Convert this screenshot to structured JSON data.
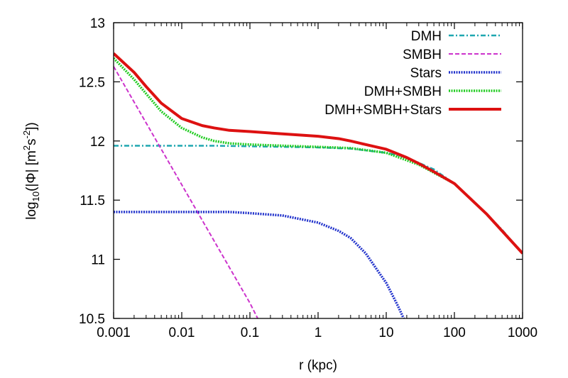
{
  "chart_data": {
    "type": "line",
    "xscale": "log",
    "xlim": [
      0.001,
      1000
    ],
    "ylim": [
      10.5,
      13
    ],
    "xlabel": "r (kpc)",
    "ylabel": {
      "prefix": "log",
      "sub": "10",
      "body": "(|Φ| [m",
      "sup1": "2",
      "mid": "s",
      "sup2": "-2",
      "end": "])"
    },
    "xticks": [
      0.001,
      0.01,
      0.1,
      1,
      10,
      100,
      1000
    ],
    "xtick_labels": [
      "0.001",
      "0.01",
      "0.1",
      "1",
      "10",
      "100",
      "1000"
    ],
    "yticks": [
      10.5,
      11,
      11.5,
      12,
      12.5,
      13
    ],
    "ytick_labels": [
      "10.5",
      "11",
      "11.5",
      "12",
      "12.5",
      "13"
    ],
    "grid": false,
    "legend_position": "top-right",
    "series": [
      {
        "name": "DMH",
        "color": "#1fa7b0",
        "style": "dash-dot",
        "x": [
          0.001,
          0.003,
          0.01,
          0.03,
          0.1,
          0.3,
          1,
          3,
          10,
          20,
          50,
          100,
          200,
          500,
          1000
        ],
        "y": [
          11.96,
          11.96,
          11.96,
          11.96,
          11.955,
          11.95,
          11.945,
          11.935,
          11.9,
          11.86,
          11.76,
          11.64,
          11.48,
          11.25,
          11.05
        ]
      },
      {
        "name": "SMBH",
        "color": "#cc33cc",
        "style": "dashed",
        "x": [
          0.001,
          0.01,
          0.1,
          0.13
        ],
        "y": [
          12.63,
          11.63,
          10.63,
          10.5
        ]
      },
      {
        "name": "Stars",
        "color": "#2233cc",
        "style": "dotted",
        "x": [
          0.001,
          0.01,
          0.05,
          0.1,
          0.3,
          1,
          2,
          3,
          5,
          8,
          10,
          15,
          18
        ],
        "y": [
          11.4,
          11.4,
          11.4,
          11.39,
          11.37,
          11.31,
          11.24,
          11.18,
          11.05,
          10.88,
          10.8,
          10.6,
          10.5
        ]
      },
      {
        "name": "DMH+SMBH",
        "color": "#22cc22",
        "style": "dotted",
        "x": [
          0.001,
          0.002,
          0.003,
          0.005,
          0.01,
          0.02,
          0.03,
          0.05,
          0.1,
          0.3,
          1,
          3,
          10,
          30,
          100,
          300,
          1000
        ],
        "y": [
          12.7,
          12.52,
          12.4,
          12.25,
          12.11,
          12.03,
          12.0,
          11.98,
          11.97,
          11.96,
          11.95,
          11.94,
          11.9,
          11.8,
          11.64,
          11.38,
          11.05
        ]
      },
      {
        "name": "DMH+SMBH+Stars",
        "color": "#dd1111",
        "style": "solid",
        "x": [
          0.001,
          0.002,
          0.003,
          0.005,
          0.01,
          0.02,
          0.03,
          0.05,
          0.1,
          0.3,
          1,
          2,
          3,
          5,
          10,
          20,
          30,
          50,
          100,
          300,
          1000
        ],
        "y": [
          12.74,
          12.58,
          12.46,
          12.32,
          12.19,
          12.13,
          12.11,
          12.09,
          12.08,
          12.06,
          12.04,
          12.02,
          12.0,
          11.97,
          11.93,
          11.86,
          11.81,
          11.74,
          11.64,
          11.38,
          11.05
        ]
      }
    ]
  }
}
